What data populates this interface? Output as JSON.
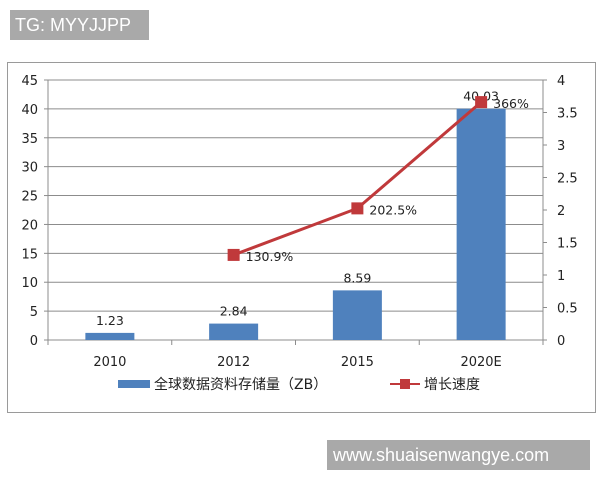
{
  "watermarks": {
    "top": "TG: MYYJJPP",
    "bottom": "www.shuaisenwangye.com"
  },
  "colors": {
    "bar": "#4f81bd",
    "line": "#c0393b",
    "grid": "#8c8c8c"
  },
  "chart_data": {
    "type": "bar+line",
    "title": "",
    "categories": [
      "2010",
      "2012",
      "2015",
      "2020E"
    ],
    "series": [
      {
        "name": "全球数据资料存储量（ZB）",
        "type": "bar",
        "axis": "left",
        "values": [
          1.23,
          2.84,
          8.59,
          40.03
        ],
        "labels": [
          "1.23",
          "2.84",
          "8.59",
          "40.03"
        ]
      },
      {
        "name": "增长速度",
        "type": "line",
        "axis": "right",
        "values": [
          null,
          1.309,
          2.025,
          3.66
        ],
        "labels": [
          "",
          "130.9%",
          "202.5%",
          "366%"
        ]
      }
    ],
    "left_axis": {
      "ticks": [
        "0",
        "5",
        "10",
        "15",
        "20",
        "25",
        "30",
        "35",
        "40",
        "45"
      ],
      "ylim": [
        0,
        45
      ]
    },
    "right_axis": {
      "ticks": [
        "0",
        "0.5",
        "1",
        "1.5",
        "2",
        "2.5",
        "3",
        "3.5",
        "4"
      ],
      "ylim": [
        0,
        4
      ]
    },
    "grid": true,
    "legend_position": "bottom"
  },
  "legend": {
    "bar_label": "全球数据资料存储量（ZB）",
    "line_label": "增长速度"
  }
}
